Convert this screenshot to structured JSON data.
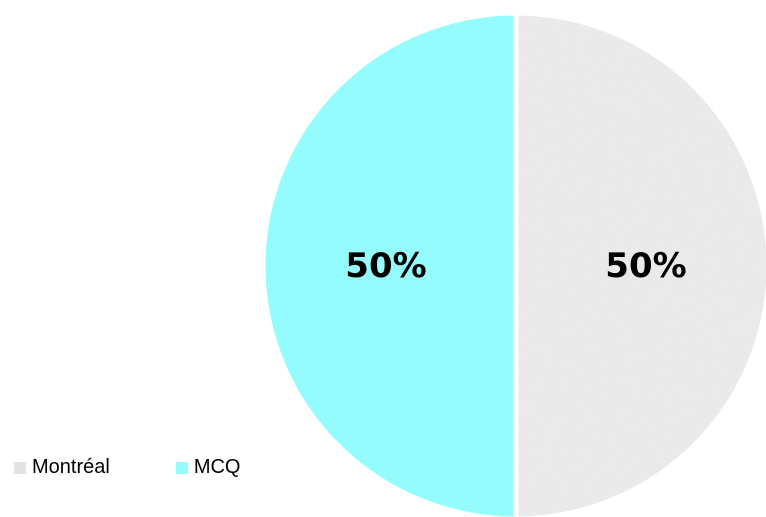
{
  "chart_data": {
    "type": "pie",
    "title": "",
    "series": [
      {
        "name": "",
        "slices": [
          {
            "label": "Montréal",
            "value": 50,
            "data_label": "50%",
            "color": "#ebebeb",
            "texture": "granite"
          },
          {
            "label": "MCQ",
            "value": 50,
            "data_label": "50%",
            "color": "#94fcfc"
          }
        ]
      }
    ],
    "start_angle_deg": 0,
    "direction": "clockwise",
    "legend": {
      "position": "bottom-left",
      "entries": [
        "Montréal",
        "MCQ"
      ]
    }
  }
}
